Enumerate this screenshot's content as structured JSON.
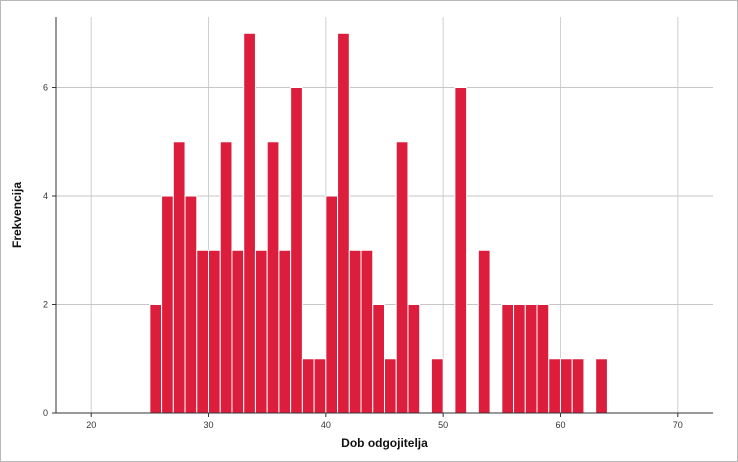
{
  "chart_data": {
    "type": "bar",
    "xlabel": "Dob odgojitelja",
    "ylabel": "Frekvencija",
    "xlim": [
      17,
      73
    ],
    "ylim": [
      0,
      7.3
    ],
    "x_ticks": [
      20,
      30,
      40,
      50,
      60,
      70
    ],
    "y_ticks": [
      0,
      2,
      4,
      6
    ],
    "grid": true,
    "bar_color": "#dc1d3c",
    "bin_width": 1,
    "x": [
      25,
      26,
      27,
      28,
      29,
      30,
      31,
      32,
      33,
      34,
      35,
      36,
      37,
      38,
      39,
      40,
      41,
      42,
      43,
      44,
      45,
      46,
      47,
      48,
      49,
      50,
      51,
      52,
      53,
      54,
      55,
      56,
      57,
      58,
      59,
      60,
      61,
      62,
      63
    ],
    "values": [
      2,
      4,
      5,
      4,
      3,
      3,
      5,
      3,
      7,
      3,
      5,
      3,
      6,
      1,
      1,
      4,
      7,
      3,
      3,
      2,
      1,
      5,
      2,
      0,
      1,
      0,
      6,
      0,
      3,
      0,
      2,
      2,
      2,
      2,
      1,
      1,
      1,
      0,
      1
    ]
  }
}
